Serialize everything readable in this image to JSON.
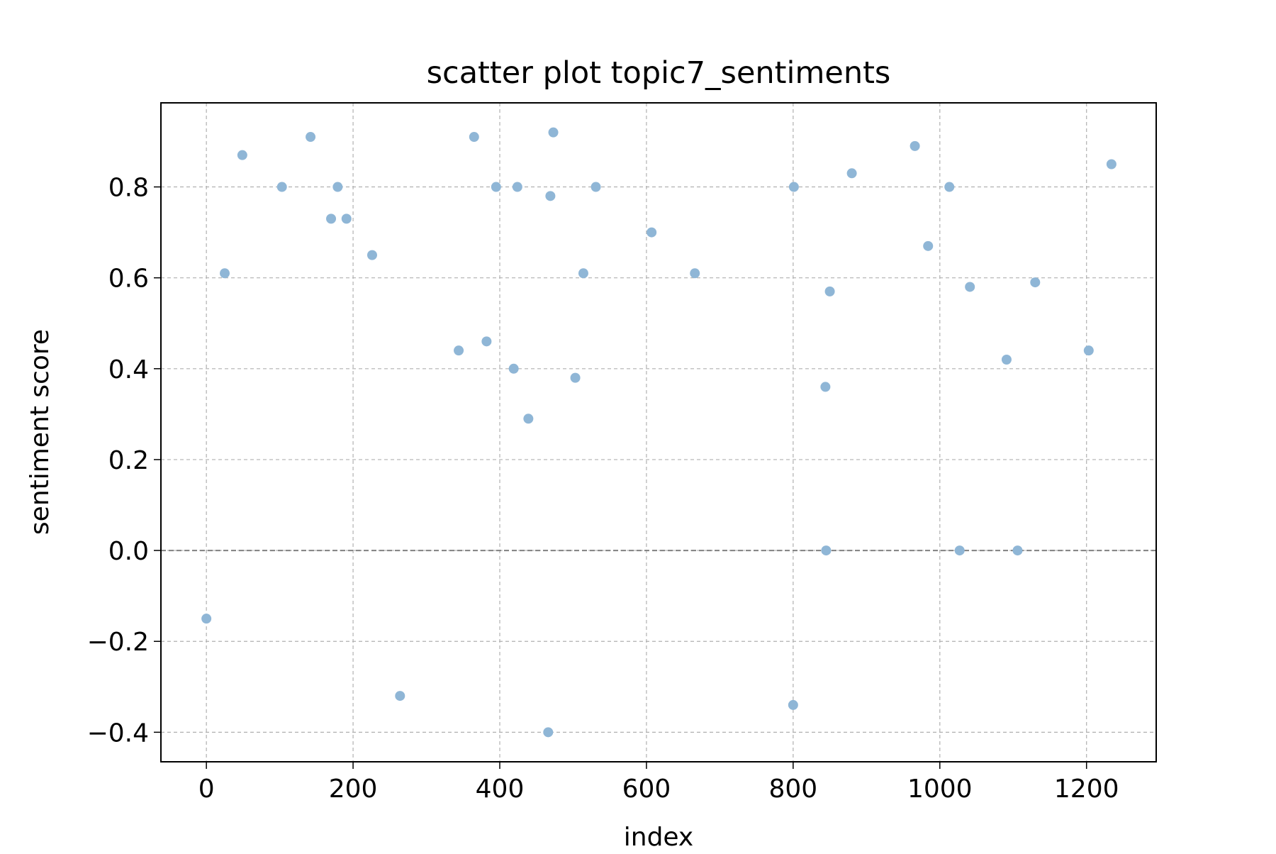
{
  "chart_data": {
    "type": "scatter",
    "title": "scatter plot topic7_sentiments",
    "xlabel": "index",
    "ylabel": "sentiment score",
    "xlim": [
      -62,
      1295
    ],
    "ylim": [
      -0.465,
      0.985
    ],
    "x_ticks": [
      0,
      200,
      400,
      600,
      800,
      1000,
      1200
    ],
    "y_ticks": [
      -0.4,
      -0.2,
      0.0,
      0.2,
      0.4,
      0.6,
      0.8
    ],
    "x_tick_labels": [
      "0",
      "200",
      "400",
      "600",
      "800",
      "1000",
      "1200"
    ],
    "y_tick_labels": [
      "−0.4",
      "−0.2",
      "0.0",
      "0.2",
      "0.4",
      "0.6",
      "0.8"
    ],
    "grid": true,
    "reference_line_y": 0.0,
    "marker_color": "#8fb6d6",
    "points": [
      {
        "x": 0,
        "y": -0.15
      },
      {
        "x": 25,
        "y": 0.61
      },
      {
        "x": 49,
        "y": 0.87
      },
      {
        "x": 103,
        "y": 0.8
      },
      {
        "x": 142,
        "y": 0.91
      },
      {
        "x": 170,
        "y": 0.73
      },
      {
        "x": 179,
        "y": 0.8
      },
      {
        "x": 191,
        "y": 0.73
      },
      {
        "x": 226,
        "y": 0.65
      },
      {
        "x": 264,
        "y": -0.32
      },
      {
        "x": 344,
        "y": 0.44
      },
      {
        "x": 365,
        "y": 0.91
      },
      {
        "x": 382,
        "y": 0.46
      },
      {
        "x": 395,
        "y": 0.8
      },
      {
        "x": 419,
        "y": 0.4
      },
      {
        "x": 424,
        "y": 0.8
      },
      {
        "x": 439,
        "y": 0.29
      },
      {
        "x": 466,
        "y": -0.4
      },
      {
        "x": 469,
        "y": 0.78
      },
      {
        "x": 473,
        "y": 0.92
      },
      {
        "x": 503,
        "y": 0.38
      },
      {
        "x": 514,
        "y": 0.61
      },
      {
        "x": 531,
        "y": 0.8
      },
      {
        "x": 607,
        "y": 0.7
      },
      {
        "x": 666,
        "y": 0.61
      },
      {
        "x": 800,
        "y": -0.34
      },
      {
        "x": 801,
        "y": 0.8
      },
      {
        "x": 844,
        "y": 0.36
      },
      {
        "x": 845,
        "y": 0.0
      },
      {
        "x": 850,
        "y": 0.57
      },
      {
        "x": 880,
        "y": 0.83
      },
      {
        "x": 966,
        "y": 0.89
      },
      {
        "x": 984,
        "y": 0.67
      },
      {
        "x": 1013,
        "y": 0.8
      },
      {
        "x": 1027,
        "y": 0.0
      },
      {
        "x": 1041,
        "y": 0.58
      },
      {
        "x": 1091,
        "y": 0.42
      },
      {
        "x": 1106,
        "y": 0.0
      },
      {
        "x": 1130,
        "y": 0.59
      },
      {
        "x": 1203,
        "y": 0.44
      },
      {
        "x": 1234,
        "y": 0.85
      }
    ]
  }
}
